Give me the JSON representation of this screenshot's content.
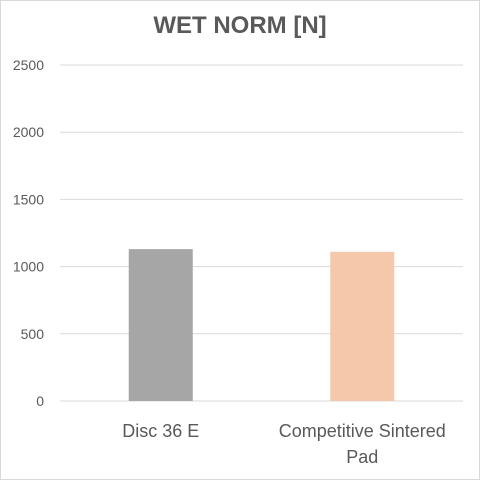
{
  "chart_data": {
    "type": "bar",
    "title": "WET NORM [N]",
    "categories": [
      "Disc 36 E",
      "Competitive Sintered Pad"
    ],
    "category_lines": [
      [
        "Disc 36 E"
      ],
      [
        "Competitive Sintered",
        "Pad"
      ]
    ],
    "values": [
      1130,
      1110
    ],
    "colors": [
      "#a6a6a6",
      "#f5c8ac"
    ],
    "ylim": [
      0,
      2500
    ],
    "yticks": [
      0,
      500,
      1000,
      1500,
      2000,
      2500
    ],
    "grid": true,
    "legend": "none",
    "xlabel": "",
    "ylabel": ""
  }
}
